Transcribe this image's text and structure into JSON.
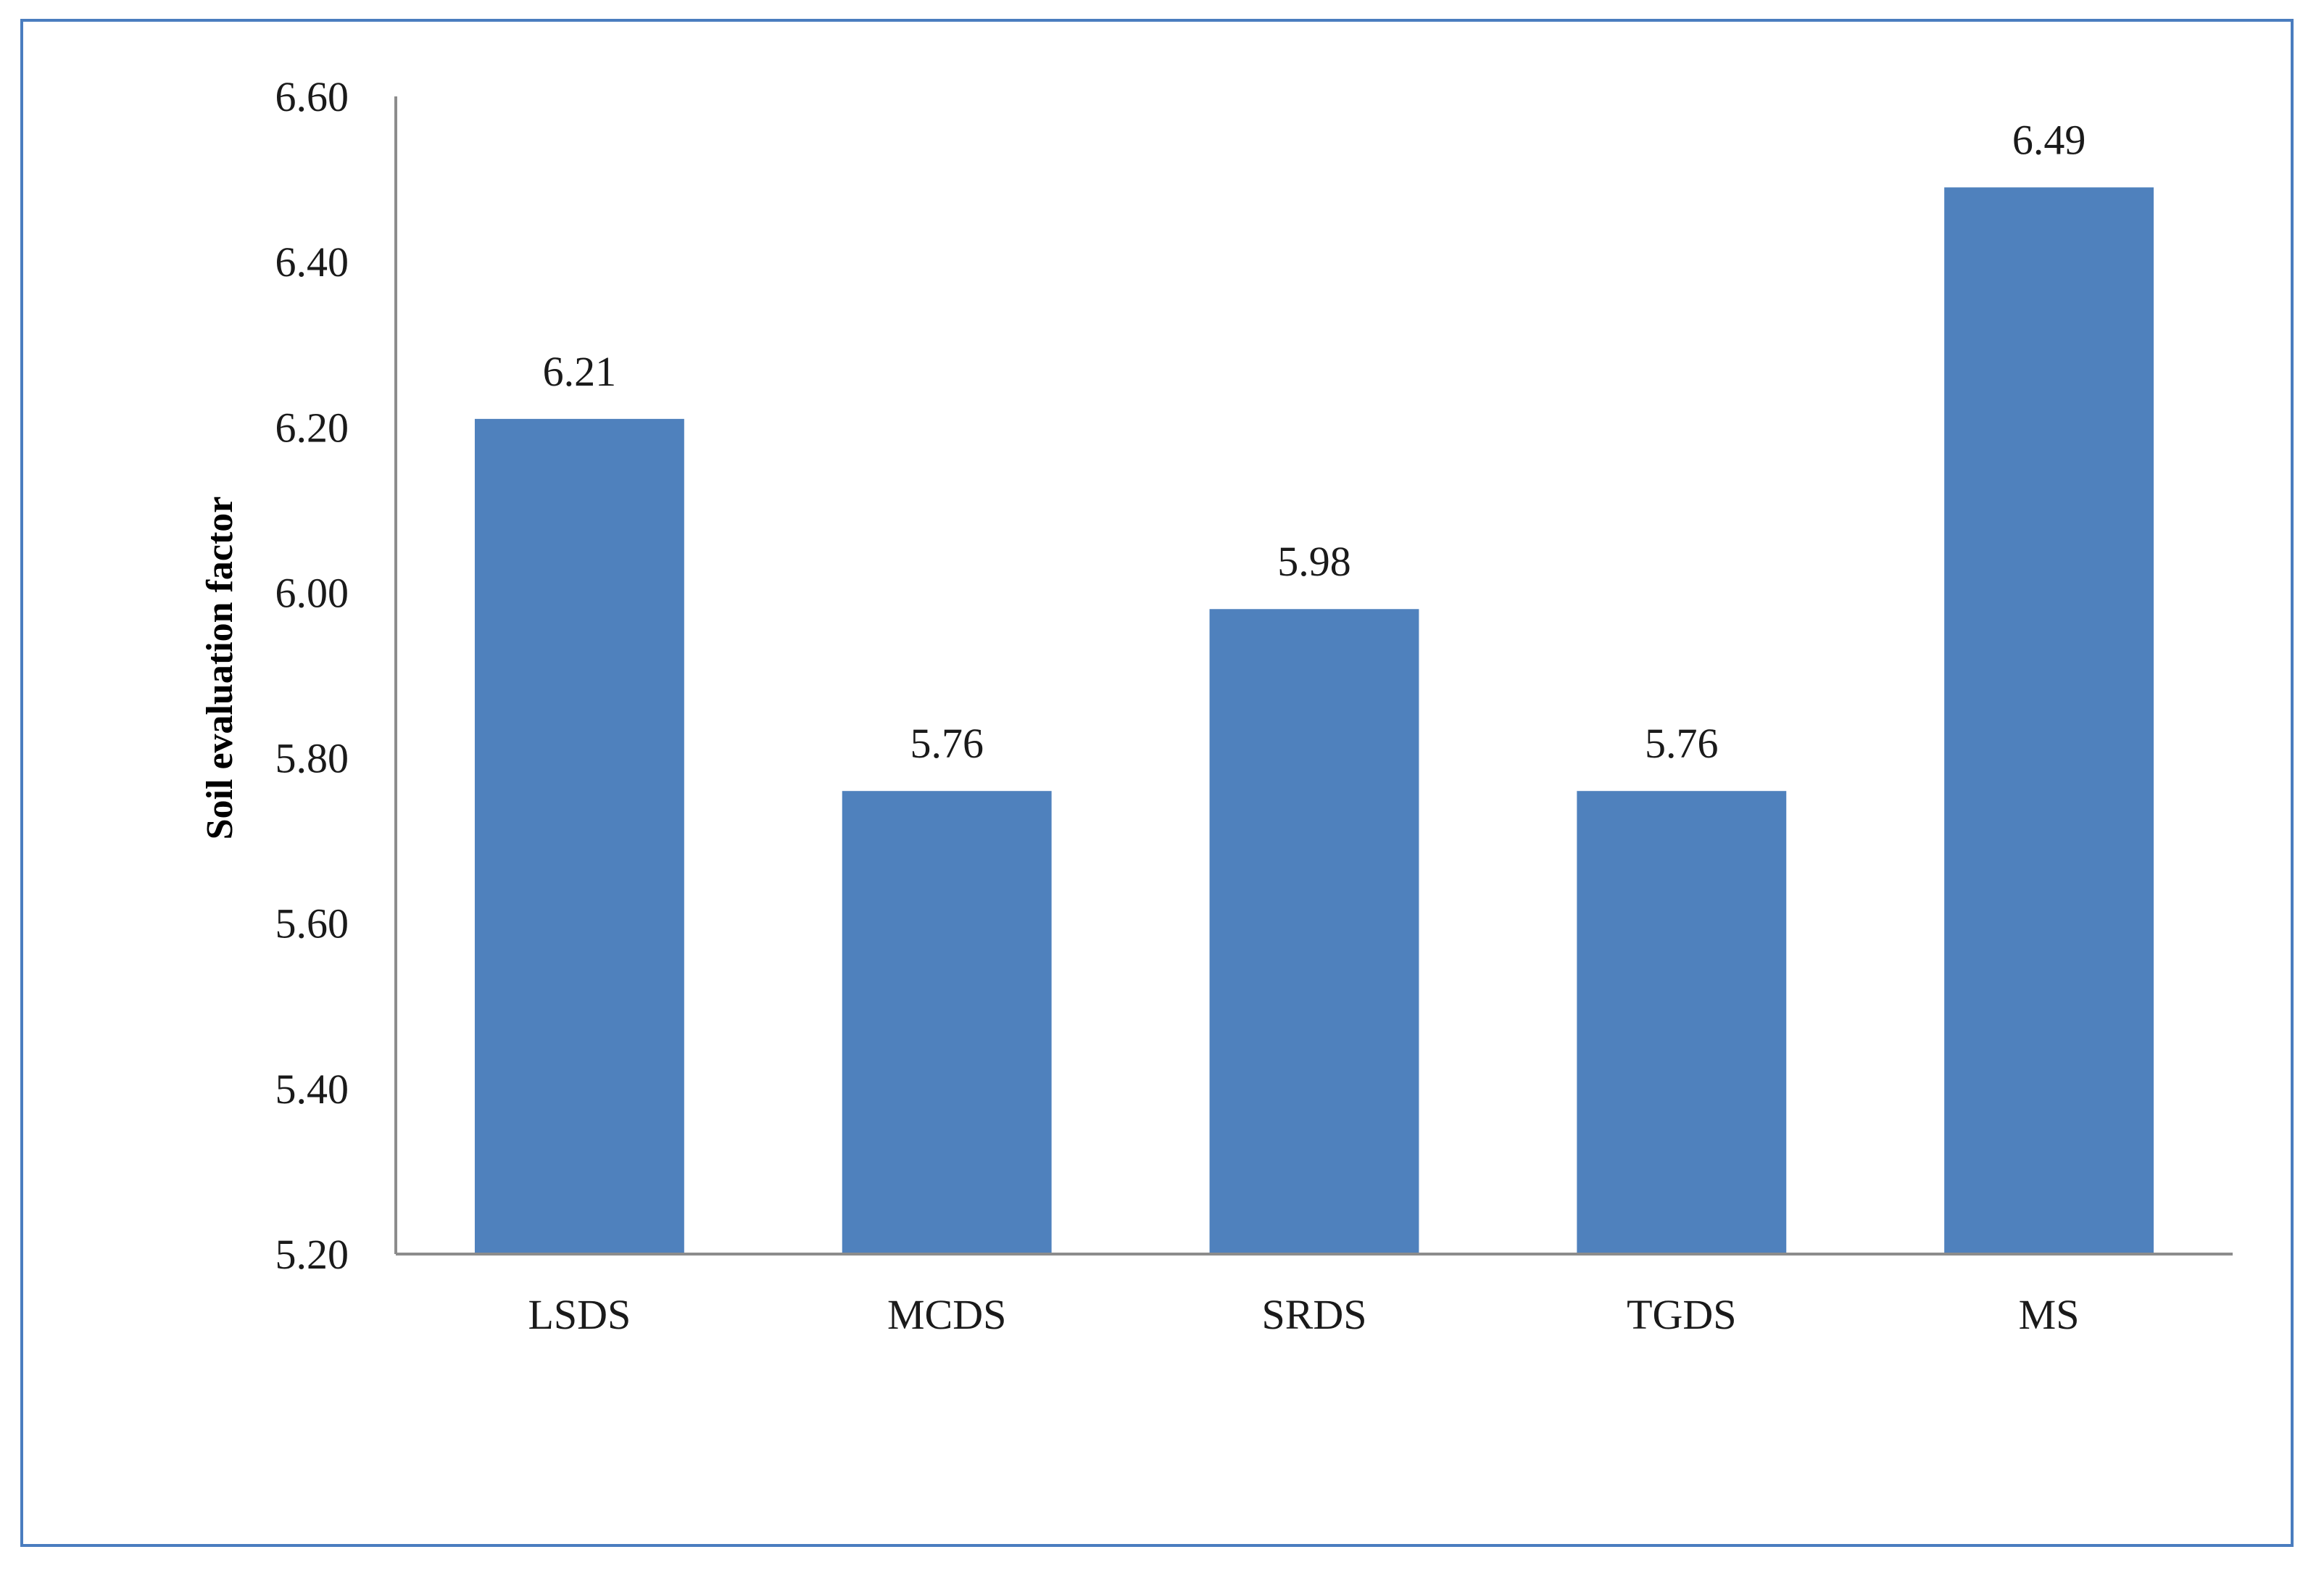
{
  "chart_data": {
    "type": "bar",
    "categories": [
      "LSDS",
      "MCDS",
      "SRDS",
      "TGDS",
      "MS"
    ],
    "values": [
      6.21,
      5.76,
      5.98,
      5.76,
      6.49
    ],
    "data_labels": [
      "6.21",
      "5.76",
      "5.98",
      "5.76",
      "6.49"
    ],
    "title": "",
    "xlabel": "",
    "ylabel": "Soil evaluation factor",
    "ylim": [
      5.2,
      6.6
    ],
    "yticks": [
      5.2,
      5.4,
      5.6,
      5.8,
      6.0,
      6.2,
      6.4,
      6.6
    ],
    "ytick_labels": [
      "5.20",
      "5.40",
      "5.60",
      "5.80",
      "6.00",
      "6.20",
      "6.40",
      "6.60"
    ],
    "grid": false,
    "legend": "none",
    "bar_color": "#4f81bd",
    "axis_color": "#8c8c8c",
    "frame_color": "#4a7dbf"
  }
}
